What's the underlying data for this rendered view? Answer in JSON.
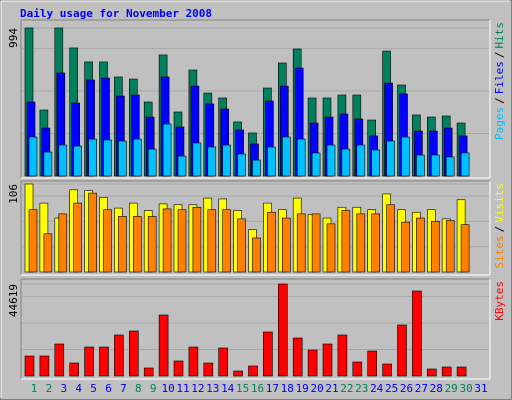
{
  "chart_data": [
    {
      "type": "bar",
      "title": "Daily usage for November 2008",
      "ylim": [
        0,
        994
      ],
      "yticks": [
        994
      ],
      "legend_separator": "/",
      "series": [
        {
          "name": "Hits",
          "color": "#00805c",
          "values": [
            994,
            443,
            994,
            860,
            766,
            766,
            665,
            651,
            497,
            813,
            430,
            712,
            557,
            524,
            363,
            289,
            591,
            759,
            853,
            524,
            524,
            544,
            544,
            376,
            839,
            611,
            410,
            396,
            403,
            356,
            null
          ]
        },
        {
          "name": "Files",
          "color": "#0000ff",
          "values": [
            497,
            322,
            692,
            490,
            645,
            658,
            537,
            544,
            396,
            665,
            329,
            604,
            484,
            450,
            309,
            215,
            504,
            604,
            725,
            356,
            396,
            416,
            383,
            269,
            624,
            551,
            302,
            302,
            322,
            269,
            null
          ]
        },
        {
          "name": "Pages",
          "color": "#00c0ff",
          "values": [
            262,
            161,
            208,
            201,
            248,
            242,
            235,
            248,
            181,
            349,
            134,
            222,
            195,
            208,
            148,
            107,
            195,
            262,
            248,
            155,
            208,
            181,
            208,
            175,
            235,
            262,
            141,
            141,
            128,
            155,
            null
          ]
        }
      ]
    },
    {
      "type": "bar",
      "ylim": [
        0,
        106
      ],
      "yticks": [
        106
      ],
      "legend_separator": "/",
      "series": [
        {
          "name": "Visits",
          "color": "#ffff00",
          "values": [
            106,
            83,
            65,
            99,
            98,
            90,
            77,
            83,
            74,
            82,
            81,
            81,
            89,
            88,
            74,
            51,
            83,
            75,
            89,
            69,
            65,
            78,
            78,
            75,
            94,
            75,
            72,
            75,
            64,
            87,
            null
          ]
        },
        {
          "name": "Sites",
          "color": "#ff8000",
          "values": [
            75,
            46,
            70,
            83,
            95,
            75,
            67,
            67,
            67,
            76,
            75,
            78,
            75,
            75,
            64,
            41,
            72,
            65,
            70,
            70,
            58,
            74,
            70,
            70,
            81,
            60,
            65,
            61,
            62,
            57,
            null
          ]
        }
      ]
    },
    {
      "type": "bar",
      "ylim": [
        0,
        44619
      ],
      "yticks": [
        44619
      ],
      "categories": [
        "1",
        "2",
        "3",
        "4",
        "5",
        "6",
        "7",
        "8",
        "9",
        "10",
        "11",
        "12",
        "13",
        "14",
        "15",
        "16",
        "17",
        "18",
        "19",
        "20",
        "21",
        "22",
        "23",
        "24",
        "25",
        "26",
        "27",
        "28",
        "29",
        "30",
        "31"
      ],
      "category_colors": [
        "#00805c",
        "#00805c",
        "#0000ff",
        "#0000ff",
        "#0000ff",
        "#0000ff",
        "#0000ff",
        "#00805c",
        "#00805c",
        "#0000ff",
        "#0000ff",
        "#0000ff",
        "#0000ff",
        "#0000ff",
        "#00805c",
        "#00805c",
        "#0000ff",
        "#0000ff",
        "#0000ff",
        "#0000ff",
        "#0000ff",
        "#00805c",
        "#00805c",
        "#0000ff",
        "#0000ff",
        "#0000ff",
        "#0000ff",
        "#0000ff",
        "#00805c",
        "#00805c",
        "#0000ff"
      ],
      "series": [
        {
          "name": "KBytes",
          "color": "#ff0000",
          "values": [
            9700,
            9700,
            15520,
            6300,
            14060,
            14060,
            19880,
            21820,
            3880,
            29580,
            7280,
            14060,
            6300,
            13580,
            2420,
            4850,
            21340,
            44619,
            18430,
            12610,
            15520,
            19880,
            6790,
            12120,
            5820,
            24740,
            41230,
            3400,
            4370,
            4370,
            null
          ]
        }
      ]
    }
  ]
}
